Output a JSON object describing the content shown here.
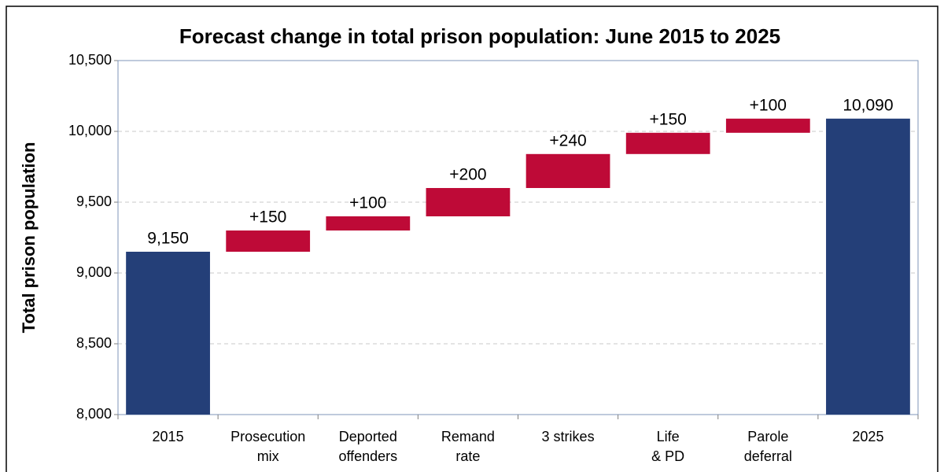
{
  "chart_data": {
    "type": "waterfall",
    "title": "Forecast change in total prison population: June 2015 to 2025",
    "y_label": "Total prison population",
    "categories": [
      [
        "2015"
      ],
      [
        "Prosecution",
        "mix"
      ],
      [
        "Deported",
        "offenders"
      ],
      [
        "Remand",
        "rate"
      ],
      [
        "3 strikes"
      ],
      [
        "Life",
        "& PD"
      ],
      [
        "Parole",
        "deferral"
      ],
      [
        "2025"
      ]
    ],
    "measure": [
      "absolute",
      "relative",
      "relative",
      "relative",
      "relative",
      "relative",
      "relative",
      "total"
    ],
    "values": [
      9150,
      150,
      100,
      200,
      240,
      150,
      100,
      10090
    ],
    "value_labels": [
      "9,150",
      "+150",
      "+100",
      "+200",
      "+240",
      "+150",
      "+100",
      "10,090"
    ],
    "colors": {
      "absolute": "#243f78",
      "relative": "#be0a37",
      "total": "#243f78"
    },
    "ylim": [
      8000,
      10500
    ],
    "yticks": [
      {
        "value": 8000,
        "label": "8,000"
      },
      {
        "value": 8500,
        "label": "8,500"
      },
      {
        "value": 9000,
        "label": "9,000"
      },
      {
        "value": 9500,
        "label": "9,500"
      },
      {
        "value": 10000,
        "label": "10,000"
      },
      {
        "value": 10500,
        "label": "10,500"
      }
    ],
    "grid": true
  }
}
